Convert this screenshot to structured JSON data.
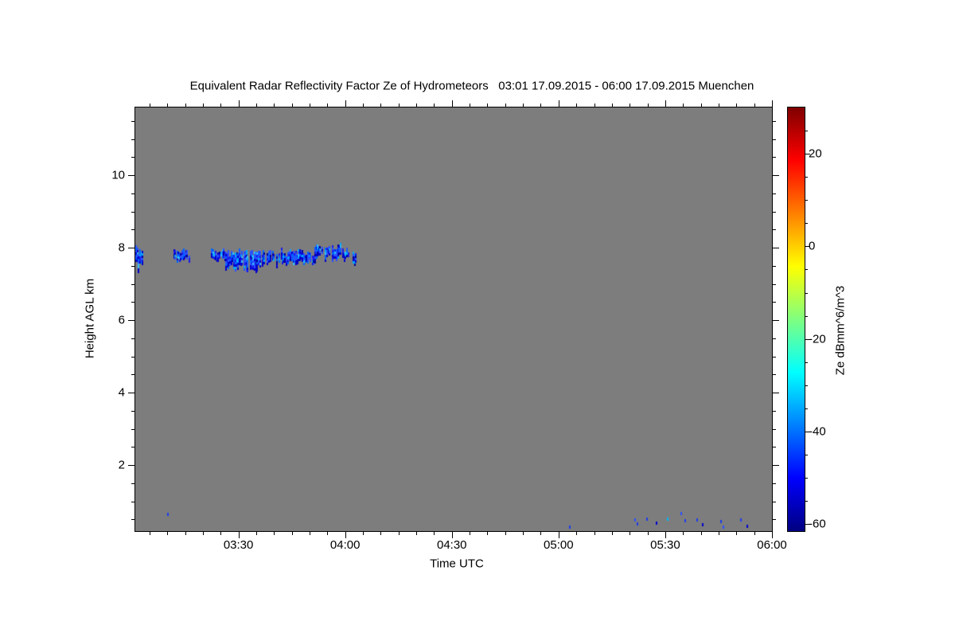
{
  "title": "Equivalent Radar Reflectivity Factor Ze of Hydrometeors   03:01 17.09.2015 - 06:00 17.09.2015 Muenchen",
  "chart_data": {
    "type": "heatmap",
    "title": "Equivalent Radar Reflectivity Factor Ze of Hydrometeors",
    "period": "03:01 17.09.2015 - 06:00 17.09.2015",
    "station": "Muenchen",
    "xlabel": "Time UTC",
    "ylabel": "Height AGL km",
    "background_color": "#7d7d7d",
    "x_range_minutes_after_0300": [
      1,
      180
    ],
    "x_major_ticks": [
      {
        "t": 30,
        "label": "03:30"
      },
      {
        "t": 60,
        "label": "04:00"
      },
      {
        "t": 90,
        "label": "04:30"
      },
      {
        "t": 120,
        "label": "05:00"
      },
      {
        "t": 150,
        "label": "05:30"
      },
      {
        "t": 180,
        "label": "06:00"
      }
    ],
    "x_minor_step_min": 5,
    "y_range_km": [
      0.18,
      11.87
    ],
    "y_major_ticks": [
      {
        "h": 2,
        "label": "2"
      },
      {
        "h": 4,
        "label": "4"
      },
      {
        "h": 6,
        "label": "6"
      },
      {
        "h": 8,
        "label": "8"
      },
      {
        "h": 10,
        "label": "10"
      }
    ],
    "y_minor_step_km": 0.5,
    "colorbar": {
      "label": "Ze dBmm^6/m^3",
      "unit": "dBmm^6/m^3",
      "range": [
        -61.5,
        30
      ],
      "major_ticks": [
        {
          "v": 20,
          "label": "20"
        },
        {
          "v": 0,
          "label": "0"
        },
        {
          "v": -20,
          "label": "-20"
        },
        {
          "v": -40,
          "label": "-40"
        },
        {
          "v": -60,
          "label": "-60"
        }
      ],
      "minor_step": 5,
      "colormap": "jet",
      "gradient_stops": [
        {
          "frac": 0.0,
          "color": "#7f0000"
        },
        {
          "frac": 0.125,
          "color": "#ff0000"
        },
        {
          "frac": 0.375,
          "color": "#ffff00"
        },
        {
          "frac": 0.625,
          "color": "#00ffff"
        },
        {
          "frac": 0.875,
          "color": "#0000ff"
        },
        {
          "frac": 1.0,
          "color": "#000080"
        }
      ]
    },
    "cloud_band": {
      "description": "Patchy thin cloud layer near 7.4-8.1 km AGL between 03:01 and 04:04 UTC, reflectivity about -35 to -58 dB",
      "palette": [
        "#30c0ff",
        "#00a8ff",
        "#0064ff",
        "#2a50ff",
        "#1a1aee",
        "#0000cc",
        "#000099"
      ],
      "palette_weights": [
        0.06,
        0.12,
        0.2,
        0.25,
        0.17,
        0.12,
        0.08
      ],
      "segments": [
        {
          "t0": 1.0,
          "t1": 3.2,
          "h": 7.74,
          "amp": 0.3
        },
        {
          "t0": 11.7,
          "t1": 16.2,
          "h": 7.8,
          "amp": 0.16
        },
        {
          "t0": 22.3,
          "t1": 26.3,
          "h": 7.78,
          "amp": 0.13
        },
        {
          "t0": 26.3,
          "t1": 36.8,
          "h": 7.68,
          "amp": 0.25
        },
        {
          "t0": 36.8,
          "t1": 51.3,
          "h": 7.75,
          "amp": 0.17
        },
        {
          "t0": 51.3,
          "t1": 59.6,
          "h": 7.9,
          "amp": 0.18
        },
        {
          "t0": 59.6,
          "t1": 61.0,
          "h": 7.8,
          "amp": 0.13
        },
        {
          "t0": 62.1,
          "t1": 63.2,
          "h": 7.72,
          "amp": 0.22
        }
      ]
    },
    "ground_specks": [
      {
        "t": 9.9,
        "h": 0.69,
        "c": "#1c3cee"
      },
      {
        "t": 122.9,
        "h": 0.33,
        "c": "#1c3cee"
      },
      {
        "t": 141.3,
        "h": 0.53,
        "c": "#2a50ff"
      },
      {
        "t": 142.0,
        "h": 0.42,
        "c": "#1c3cee"
      },
      {
        "t": 144.6,
        "h": 0.55,
        "c": "#1c3cee"
      },
      {
        "t": 147.3,
        "h": 0.44,
        "c": "#0000cc"
      },
      {
        "t": 150.5,
        "h": 0.55,
        "c": "#00b4ff"
      },
      {
        "t": 154.3,
        "h": 0.71,
        "c": "#2a50ff"
      },
      {
        "t": 155.4,
        "h": 0.51,
        "c": "#1c3cee"
      },
      {
        "t": 158.8,
        "h": 0.53,
        "c": "#1c3cee"
      },
      {
        "t": 160.3,
        "h": 0.4,
        "c": "#0000cc"
      },
      {
        "t": 165.5,
        "h": 0.49,
        "c": "#1c3cee"
      },
      {
        "t": 166.1,
        "h": 0.33,
        "c": "#2a50ff"
      },
      {
        "t": 171.1,
        "h": 0.53,
        "c": "#1c3cee"
      },
      {
        "t": 172.9,
        "h": 0.36,
        "c": "#0000cc"
      }
    ]
  }
}
